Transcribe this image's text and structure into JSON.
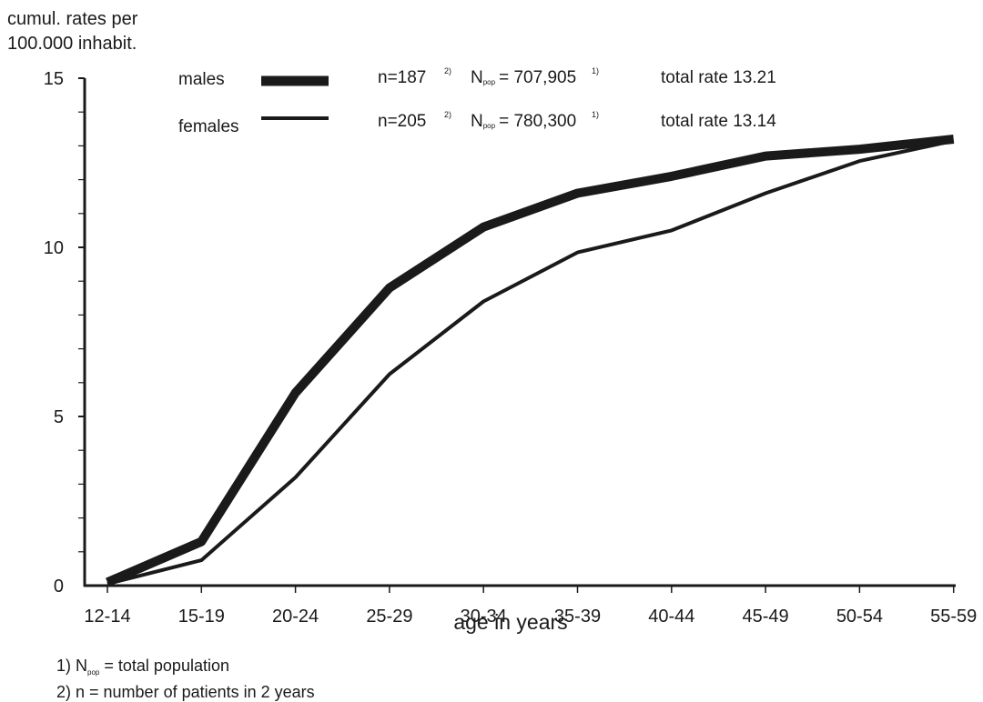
{
  "chart_data": {
    "type": "line",
    "ylabel_lines": [
      "cumul. rates per",
      "100.000 inhabit."
    ],
    "xlabel": "age in years",
    "categories": [
      "12-14",
      "15-19",
      "20-24",
      "25-29",
      "30-34",
      "35-39",
      "40-44",
      "45-49",
      "50-54",
      "55-59"
    ],
    "ylim": [
      0,
      15
    ],
    "yticks": [
      "0",
      "5",
      "10",
      "15"
    ],
    "grid": false,
    "legend_position": "top",
    "series": [
      {
        "name": "males",
        "style": "thick",
        "values": [
          0.1,
          1.3,
          5.7,
          8.8,
          10.6,
          11.6,
          12.1,
          12.7,
          12.9,
          13.2
        ],
        "n_text": "n=187",
        "n_ref": "2)",
        "npop_prefix": "N",
        "npop_sub": "pop",
        "npop_value": "= 707,905",
        "npop_ref": "1)",
        "total_rate": "total rate 13.21"
      },
      {
        "name": "females",
        "style": "thin",
        "values": [
          0.05,
          0.75,
          3.2,
          6.25,
          8.4,
          9.85,
          10.5,
          11.6,
          12.55,
          13.15
        ],
        "n_text": "n=205",
        "n_ref": "2)",
        "npop_prefix": "N",
        "npop_sub": "pop",
        "npop_value": "= 780,300",
        "npop_ref": "1)",
        "total_rate": "total rate 13.14"
      }
    ],
    "footnotes": [
      {
        "prefix": "1) N",
        "sub": "pop",
        "text": " = total population"
      },
      {
        "prefix": "2) n = number of patients in 2 years",
        "sub": "",
        "text": ""
      }
    ],
    "colors": {
      "line": "#1a1a1a",
      "background": "#ffffff"
    }
  }
}
